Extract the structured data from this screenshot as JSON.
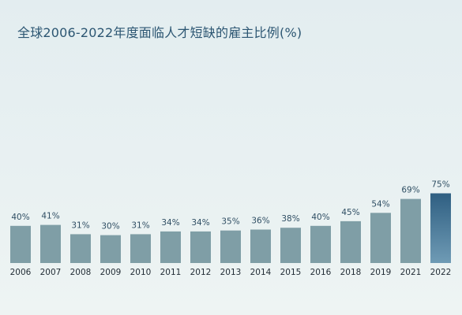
{
  "chart_data": {
    "type": "bar",
    "title": "全球2006-2022年度面临人才短缺的雇主比例(%)",
    "xlabel": "",
    "ylabel": "",
    "ylim": [
      0,
      100
    ],
    "grid": false,
    "categories": [
      "2006",
      "2007",
      "2008",
      "2009",
      "2010",
      "2011",
      "2012",
      "2013",
      "2014",
      "2015",
      "2016",
      "2018",
      "2019",
      "2021",
      "2022"
    ],
    "values": [
      40,
      41,
      31,
      30,
      31,
      34,
      34,
      35,
      36,
      38,
      40,
      45,
      54,
      69,
      75
    ],
    "value_labels": [
      "40%",
      "41%",
      "31%",
      "30%",
      "31%",
      "34%",
      "34%",
      "35%",
      "36%",
      "38%",
      "40%",
      "45%",
      "54%",
      "69%",
      "75%"
    ],
    "colors": {
      "bar": "#7f9ea6",
      "highlight_top": "#2f5f82",
      "highlight_bottom": "#6f9bb5",
      "highlight_label": "#2c5672"
    },
    "highlight_index": 14
  }
}
